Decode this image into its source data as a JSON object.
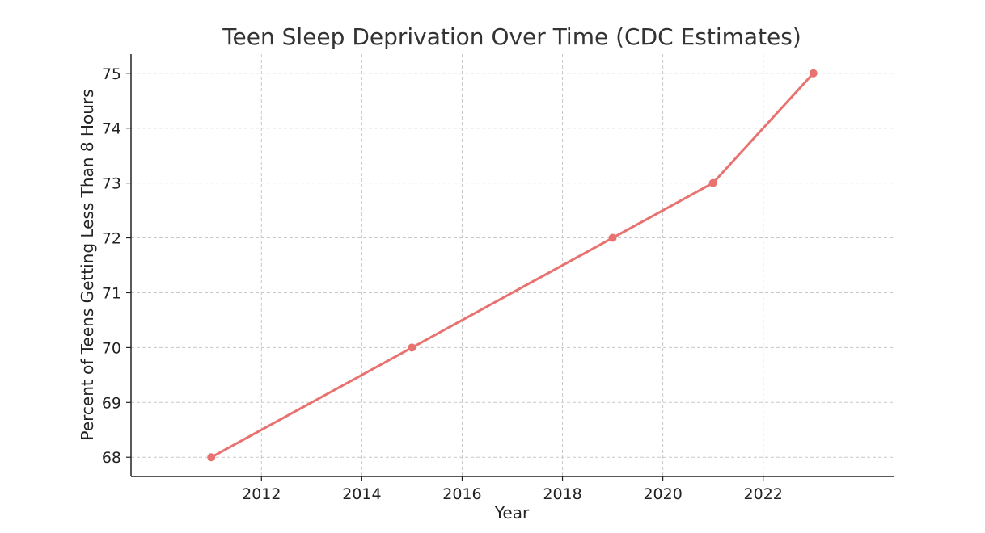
{
  "chart_data": {
    "type": "line",
    "title": "Teen Sleep Deprivation Over Time (CDC Estimates)",
    "xlabel": "Year",
    "ylabel": "Percent of Teens Getting Less Than 8 Hours",
    "x": [
      2011,
      2015,
      2019,
      2021,
      2023
    ],
    "series": [
      {
        "values": [
          68,
          70,
          72,
          73,
          75
        ],
        "color": "#e8726f"
      }
    ],
    "xlim": [
      2009.4,
      2024.6
    ],
    "ylim": [
      67.65,
      75.35
    ],
    "xticks": [
      2012,
      2014,
      2016,
      2018,
      2020,
      2022
    ],
    "yticks": [
      68,
      69,
      70,
      71,
      72,
      73,
      74,
      75
    ],
    "grid": true,
    "grid_style": "dashed",
    "legend": "none"
  }
}
